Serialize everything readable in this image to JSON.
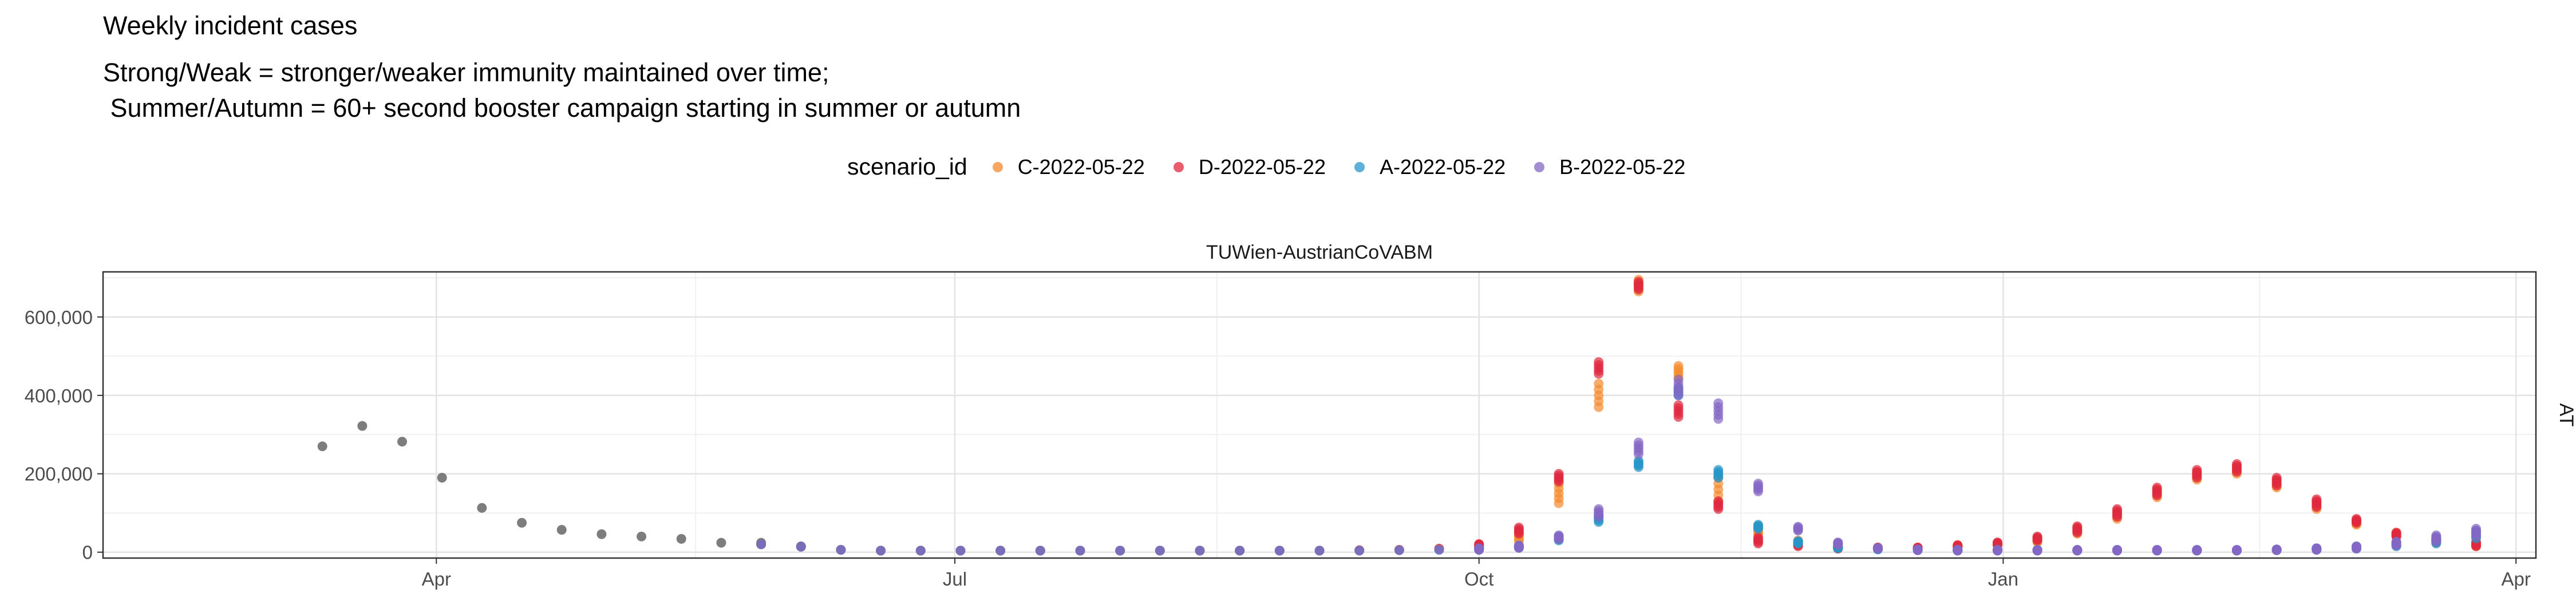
{
  "header": {
    "title": "Weekly incident cases",
    "subtitle_line1": "Strong/Weak = stronger/weaker immunity maintained over time;",
    "subtitle_line2": " Summer/Autumn = 60+ second booster campaign starting in summer or autumn"
  },
  "legend": {
    "title": "scenario_id",
    "items": [
      {
        "label": "C-2022-05-22",
        "color": "#f58a2e"
      },
      {
        "label": "D-2022-05-22",
        "color": "#e0283e"
      },
      {
        "label": "A-2022-05-22",
        "color": "#2796c8"
      },
      {
        "label": "B-2022-05-22",
        "color": "#8467c4"
      }
    ]
  },
  "chart_data": {
    "type": "scatter",
    "panel_title": "TUWien-AustrianCoVABM",
    "facet_label": "AT",
    "x_ticks": [
      "Apr",
      "Jul",
      "Oct",
      "Jan",
      "Apr"
    ],
    "y_ticks": [
      "0",
      "200,000",
      "400,000",
      "600,000"
    ],
    "ylim": [
      -15000,
      715000
    ],
    "xlim_weeks": [
      -8.5,
      52.5
    ],
    "grid": true,
    "observed_color": "#666666",
    "observed": {
      "x": [
        "2022-03-12",
        "2022-03-19",
        "2022-03-26",
        "2022-04-02",
        "2022-04-09",
        "2022-04-16",
        "2022-04-23",
        "2022-04-30",
        "2022-05-07",
        "2022-05-14",
        "2022-05-21",
        "2022-05-28",
        "2022-06-04"
      ],
      "y": [
        270000,
        322000,
        282000,
        190000,
        113000,
        75000,
        57000,
        46000,
        40000,
        34000,
        24000,
        24000,
        15000
      ]
    },
    "projection_dates": [
      "2022-05-28",
      "2022-06-04",
      "2022-06-11",
      "2022-06-18",
      "2022-06-25",
      "2022-07-02",
      "2022-07-09",
      "2022-07-16",
      "2022-07-23",
      "2022-07-30",
      "2022-08-06",
      "2022-08-13",
      "2022-08-20",
      "2022-08-27",
      "2022-09-03",
      "2022-09-10",
      "2022-09-17",
      "2022-09-24",
      "2022-10-01",
      "2022-10-08",
      "2022-10-15",
      "2022-10-22",
      "2022-10-29",
      "2022-11-05",
      "2022-11-12",
      "2022-11-19",
      "2022-11-26",
      "2022-12-03",
      "2022-12-10",
      "2022-12-17",
      "2022-12-24",
      "2022-12-31",
      "2023-01-07",
      "2023-01-14",
      "2023-01-21",
      "2023-01-28",
      "2023-02-04",
      "2023-02-11",
      "2023-02-18",
      "2023-02-25",
      "2023-03-04",
      "2023-03-11",
      "2023-03-18",
      "2023-03-25"
    ],
    "series": [
      {
        "name": "C-2022-05-22",
        "values": [
          20000,
          14000,
          6000,
          4000,
          4000,
          4000,
          4000,
          4000,
          4000,
          4000,
          4000,
          4000,
          4000,
          4000,
          4000,
          5000,
          6000,
          9000,
          15000,
          38000,
          150000,
          400000,
          680000,
          460000,
          160000,
          55000,
          25000,
          12000,
          10000,
          10000,
          15000,
          20000,
          30000,
          55000,
          95000,
          150000,
          195000,
          210000,
          175000,
          120000,
          75000,
          45000,
          30000,
          20000
        ],
        "spread": [
          0,
          0,
          0,
          0,
          0,
          0,
          0,
          0,
          0,
          0,
          0,
          0,
          0,
          0,
          0,
          0,
          0,
          0,
          3000,
          10000,
          25000,
          30000,
          15000,
          15000,
          30000,
          10000,
          5000,
          3000,
          2000,
          2000,
          3000,
          3000,
          5000,
          8000,
          10000,
          10000,
          10000,
          10000,
          10000,
          10000,
          5000,
          5000,
          5000,
          5000
        ]
      },
      {
        "name": "D-2022-05-22",
        "values": [
          20000,
          14000,
          6000,
          4000,
          4000,
          4000,
          4000,
          4000,
          4000,
          4000,
          4000,
          4000,
          4000,
          4000,
          4000,
          5000,
          6000,
          9000,
          18000,
          55000,
          190000,
          470000,
          680000,
          360000,
          120000,
          30000,
          20000,
          12000,
          10000,
          10000,
          15000,
          22000,
          35000,
          58000,
          100000,
          155000,
          200000,
          215000,
          180000,
          125000,
          80000,
          45000,
          30000,
          20000
        ],
        "spread": [
          0,
          0,
          0,
          0,
          0,
          0,
          0,
          0,
          0,
          0,
          0,
          0,
          0,
          0,
          0,
          0,
          0,
          0,
          3000,
          8000,
          10000,
          15000,
          10000,
          15000,
          10000,
          8000,
          5000,
          3000,
          2000,
          2000,
          3000,
          3000,
          5000,
          8000,
          10000,
          10000,
          10000,
          10000,
          10000,
          10000,
          5000,
          5000,
          5000,
          5000
        ]
      },
      {
        "name": "A-2022-05-22",
        "values": [
          20000,
          14000,
          6000,
          4000,
          4000,
          4000,
          4000,
          4000,
          4000,
          4000,
          4000,
          4000,
          4000,
          4000,
          4000,
          4000,
          5000,
          6000,
          8000,
          14000,
          35000,
          85000,
          225000,
          410000,
          200000,
          65000,
          25000,
          12000,
          8000,
          6000,
          5000,
          5000,
          5000,
          5000,
          5000,
          5000,
          5000,
          5000,
          6000,
          8000,
          12000,
          20000,
          30000,
          45000
        ],
        "spread": [
          0,
          0,
          0,
          0,
          0,
          0,
          0,
          0,
          0,
          0,
          0,
          0,
          0,
          0,
          0,
          0,
          0,
          0,
          2000,
          3000,
          5000,
          8000,
          8000,
          10000,
          10000,
          5000,
          3000,
          2000,
          1000,
          1000,
          1000,
          1000,
          1000,
          1000,
          1000,
          1000,
          1000,
          1000,
          1000,
          2000,
          3000,
          5000,
          8000,
          10000
        ]
      },
      {
        "name": "B-2022-05-22",
        "values": [
          20000,
          14000,
          6000,
          4000,
          4000,
          4000,
          4000,
          4000,
          4000,
          4000,
          4000,
          4000,
          4000,
          4000,
          4000,
          4000,
          5000,
          6000,
          8000,
          14000,
          38000,
          100000,
          265000,
          420000,
          360000,
          165000,
          60000,
          22000,
          10000,
          6000,
          5000,
          5000,
          5000,
          5000,
          5000,
          5000,
          5000,
          5000,
          6000,
          8000,
          12000,
          22000,
          35000,
          50000
        ],
        "spread": [
          0,
          0,
          0,
          0,
          0,
          0,
          0,
          0,
          0,
          0,
          0,
          0,
          0,
          0,
          0,
          0,
          0,
          0,
          2000,
          3000,
          5000,
          10000,
          15000,
          20000,
          20000,
          10000,
          5000,
          3000,
          1000,
          1000,
          1000,
          1000,
          1000,
          1000,
          1000,
          1000,
          1000,
          1000,
          1000,
          2000,
          3000,
          5000,
          8000,
          10000
        ]
      }
    ]
  }
}
